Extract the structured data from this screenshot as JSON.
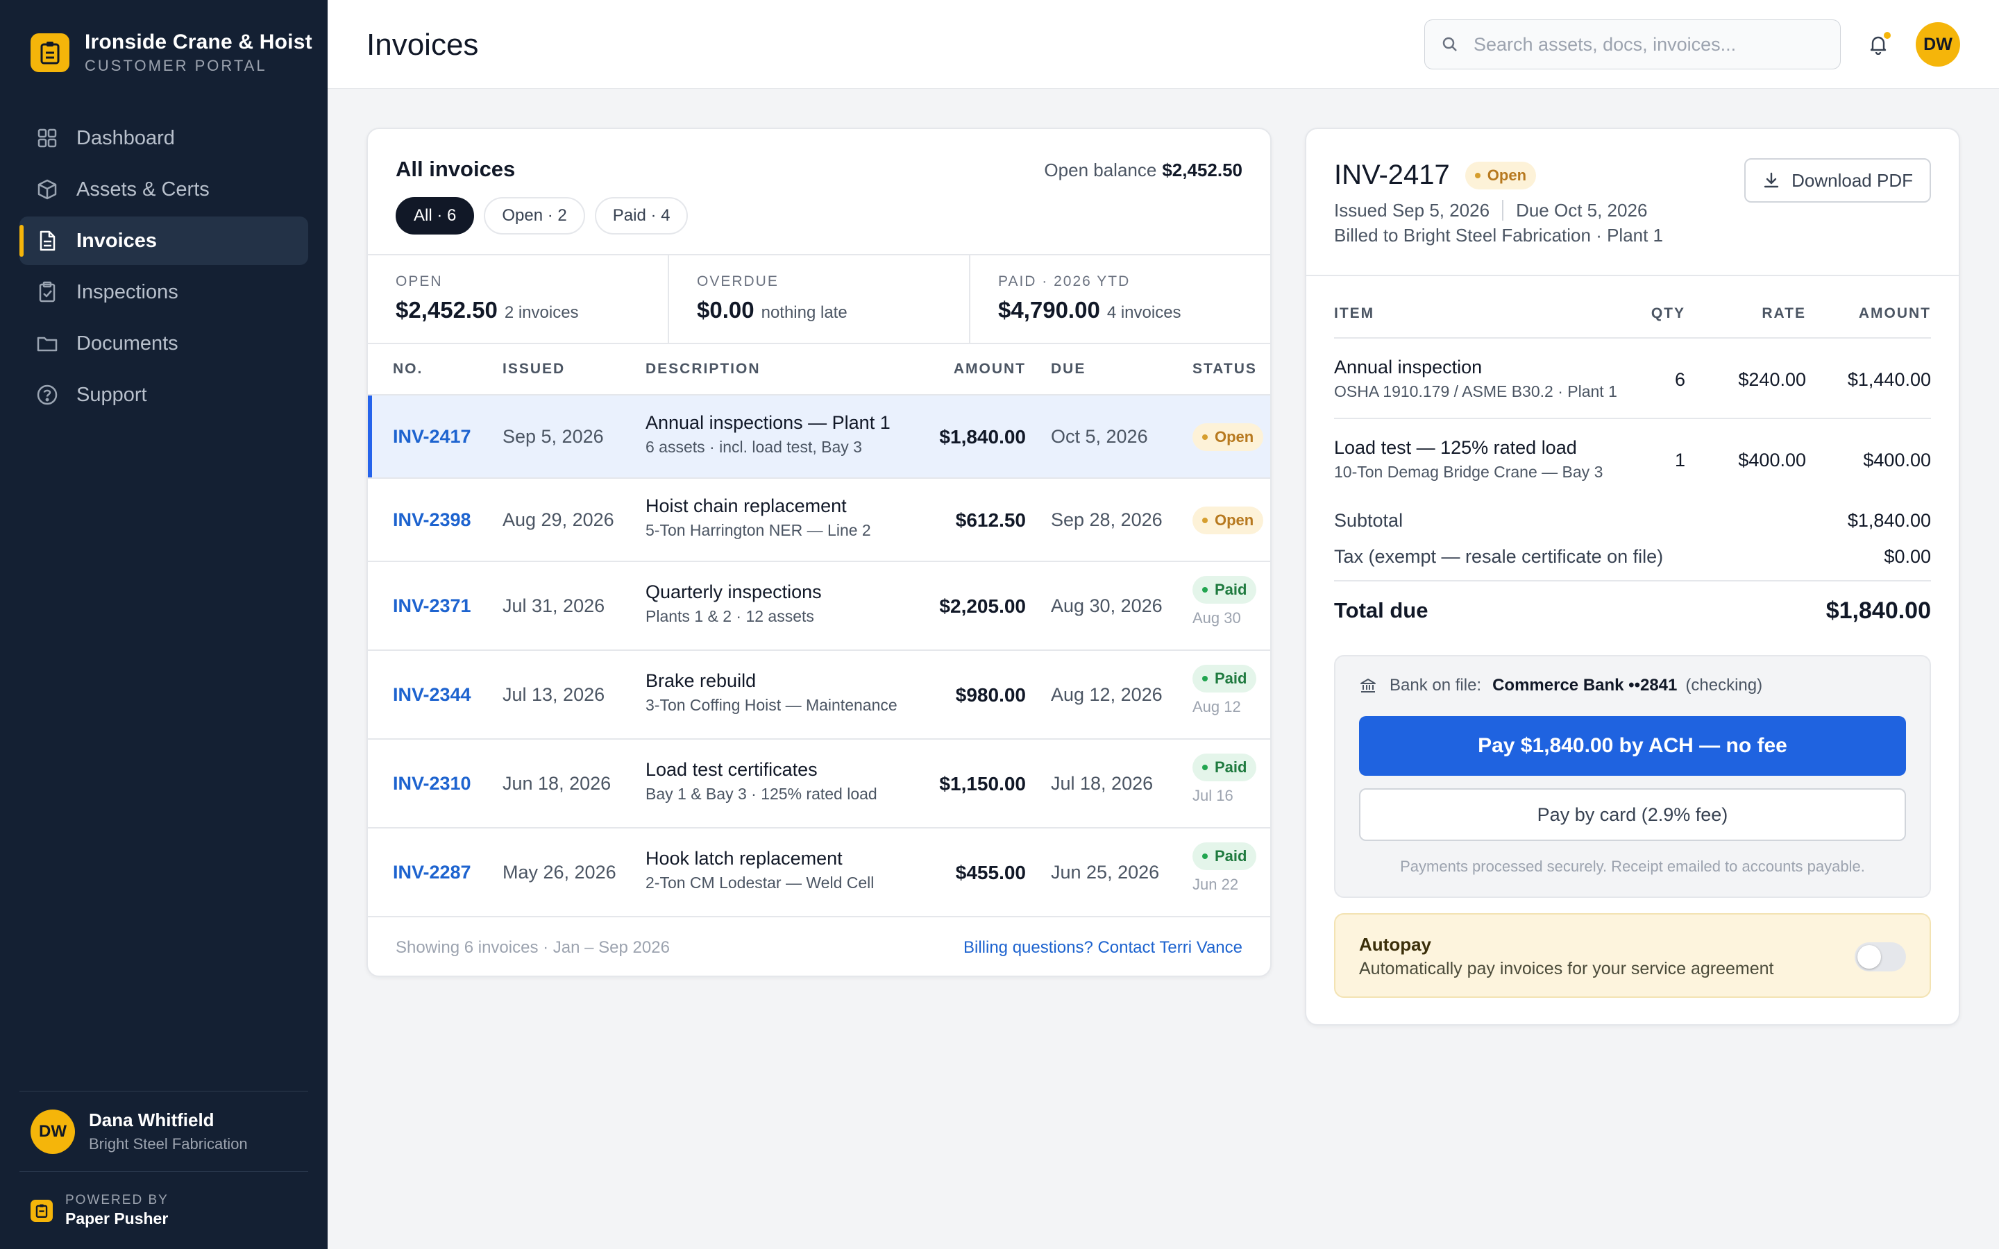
{
  "brand": {
    "name": "Ironside Crane & Hoist",
    "sub": "CUSTOMER PORTAL"
  },
  "nav": [
    {
      "label": "Dashboard",
      "icon": "grid-icon"
    },
    {
      "label": "Assets & Certs",
      "icon": "box-icon"
    },
    {
      "label": "Invoices",
      "icon": "file-icon",
      "active": true
    },
    {
      "label": "Inspections",
      "icon": "clipboard-check-icon"
    },
    {
      "label": "Documents",
      "icon": "folder-icon"
    },
    {
      "label": "Support",
      "icon": "help-circle-icon"
    }
  ],
  "user": {
    "initials": "DW",
    "name": "Dana Whitfield",
    "company": "Bright Steel Fabrication"
  },
  "powered": {
    "label": "POWERED BY",
    "name": "Paper Pusher"
  },
  "header": {
    "title": "Invoices",
    "search_placeholder": "Search assets, docs, invoices...",
    "avatar": "DW"
  },
  "invoices": {
    "title": "All invoices",
    "balance_label": "Open balance",
    "balance_value": "$2,452.50",
    "filters": [
      "All · 6",
      "Open · 2",
      "Paid · 4"
    ],
    "stats": [
      {
        "label": "OPEN",
        "value": "$2,452.50",
        "sub": "2 invoices"
      },
      {
        "label": "OVERDUE",
        "value": "$0.00",
        "sub": "nothing late"
      },
      {
        "label": "PAID · 2026 YTD",
        "value": "$4,790.00",
        "sub": "4 invoices"
      }
    ],
    "columns": {
      "no": "NO.",
      "issued": "ISSUED",
      "description": "DESCRIPTION",
      "amount": "AMOUNT",
      "due": "DUE",
      "status": "STATUS"
    },
    "rows": [
      {
        "no": "INV-2417",
        "issued": "Sep 5, 2026",
        "title": "Annual inspections — Plant 1",
        "sub": "6 assets · incl. load test, Bay 3",
        "amount": "$1,840.00",
        "due": "Oct 5, 2026",
        "status": "Open",
        "paid_on": ""
      },
      {
        "no": "INV-2398",
        "issued": "Aug 29, 2026",
        "title": "Hoist chain replacement",
        "sub": "5-Ton Harrington NER — Line 2",
        "amount": "$612.50",
        "due": "Sep 28, 2026",
        "status": "Open",
        "paid_on": ""
      },
      {
        "no": "INV-2371",
        "issued": "Jul 31, 2026",
        "title": "Quarterly inspections",
        "sub": "Plants 1 & 2 · 12 assets",
        "amount": "$2,205.00",
        "due": "Aug 30, 2026",
        "status": "Paid",
        "paid_on": "Aug 30"
      },
      {
        "no": "INV-2344",
        "issued": "Jul 13, 2026",
        "title": "Brake rebuild",
        "sub": "3-Ton Coffing Hoist — Maintenance",
        "amount": "$980.00",
        "due": "Aug 12, 2026",
        "status": "Paid",
        "paid_on": "Aug 12"
      },
      {
        "no": "INV-2310",
        "issued": "Jun 18, 2026",
        "title": "Load test certificates",
        "sub": "Bay 1 & Bay 3 · 125% rated load",
        "amount": "$1,150.00",
        "due": "Jul 18, 2026",
        "status": "Paid",
        "paid_on": "Jul 16"
      },
      {
        "no": "INV-2287",
        "issued": "May 26, 2026",
        "title": "Hook latch replacement",
        "sub": "2-Ton CM Lodestar — Weld Cell",
        "amount": "$455.00",
        "due": "Jun 25, 2026",
        "status": "Paid",
        "paid_on": "Jun 22"
      }
    ],
    "footer_text": "Showing 6 invoices · Jan – Sep 2026",
    "footer_link": "Billing questions? Contact Terri Vance"
  },
  "detail": {
    "id": "INV-2417",
    "status": "Open",
    "issued": "Issued Sep 5, 2026",
    "due": "Due Oct 5, 2026",
    "billed": "Billed to Bright Steel Fabrication · Plant 1",
    "download": "Download PDF",
    "columns": {
      "item": "ITEM",
      "qty": "QTY",
      "rate": "RATE",
      "amount": "AMOUNT"
    },
    "items": [
      {
        "name": "Annual inspection",
        "sub": "OSHA 1910.179 / ASME B30.2 · Plant 1",
        "qty": "6",
        "rate": "$240.00",
        "amount": "$1,440.00"
      },
      {
        "name": "Load test — 125% rated load",
        "sub": "10-Ton Demag Bridge Crane — Bay 3",
        "qty": "1",
        "rate": "$400.00",
        "amount": "$400.00"
      }
    ],
    "subtotal_label": "Subtotal",
    "subtotal": "$1,840.00",
    "tax_label": "Tax (exempt — resale certificate on file)",
    "tax": "$0.00",
    "total_label": "Total due",
    "total": "$1,840.00",
    "bank_label": "Bank on file:",
    "bank_name": "Commerce Bank ••2841",
    "bank_type": "(checking)",
    "ach_button": "Pay $1,840.00 by ACH — no fee",
    "card_button": "Pay by card (2.9% fee)",
    "secure_note": "Payments processed securely. Receipt emailed to accounts payable.",
    "autopay_title": "Autopay",
    "autopay_sub": "Automatically pay invoices for your service agreement",
    "autopay_on": false
  },
  "colors": {
    "sidebar": "#142033",
    "accent": "#f5b50a",
    "primary": "#1f63e0",
    "link": "#1d63cf"
  }
}
